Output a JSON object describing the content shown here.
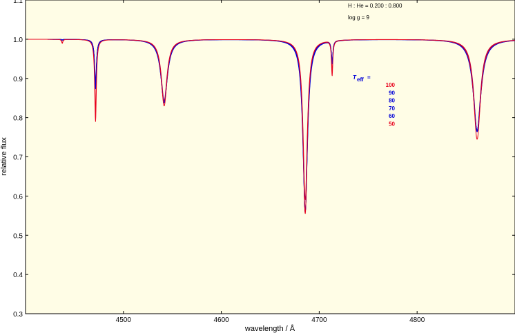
{
  "chart_data": {
    "type": "line",
    "xlabel": "wavelength / Å",
    "ylabel": "relative flux",
    "xlim": [
      4400,
      4900
    ],
    "ylim": [
      0.3,
      1.1
    ],
    "x_ticks": [
      4500,
      4600,
      4700,
      4800
    ],
    "y_ticks": [
      0.3,
      0.4,
      0.5,
      0.6,
      0.7,
      0.8,
      0.9,
      1.0,
      1.1
    ],
    "y_tick_labels": [
      "0.3",
      "0.4",
      "0.5",
      "0.6",
      "0.7",
      "0.8",
      "0.9",
      "1.0",
      "1.1"
    ],
    "background": "#fffde6",
    "grid": false,
    "annotations": {
      "ratio": "H : He = 0.200 : 0.800",
      "logg": "log g  = 9"
    },
    "legend": {
      "title": "T",
      "title_sub": "eff",
      "title_suffix": "=",
      "placement": "right-center",
      "entries": [
        "100",
        "90",
        "80",
        "70",
        "60",
        "50"
      ]
    },
    "colors": {
      "red": "#e8001c",
      "blue": "#0000d8"
    },
    "lines": [
      {
        "center": 4437.5,
        "blue_depth": 0.0,
        "red_depth": 0.01
      },
      {
        "center": 4471.5,
        "blue_depth": 0.1,
        "red_depth": 0.21
      },
      {
        "center": 4541.6,
        "blue_depth": 0.16,
        "red_depth": 0.17
      },
      {
        "center": 4685.7,
        "blue_depth": 0.44,
        "red_depth": 0.445
      },
      {
        "center": 4713.2,
        "blue_depth": 0.05,
        "red_depth": 0.09
      },
      {
        "center": 4861.3,
        "blue_depth": 0.23,
        "red_depth": 0.255
      }
    ],
    "series": [
      {
        "name": "100",
        "color": "#e8001c"
      },
      {
        "name": "90",
        "color": "#0000d8"
      },
      {
        "name": "80",
        "color": "#0000d8"
      },
      {
        "name": "70",
        "color": "#0000d8"
      },
      {
        "name": "60",
        "color": "#0000d8"
      },
      {
        "name": "50",
        "color": "#e8001c"
      }
    ]
  }
}
